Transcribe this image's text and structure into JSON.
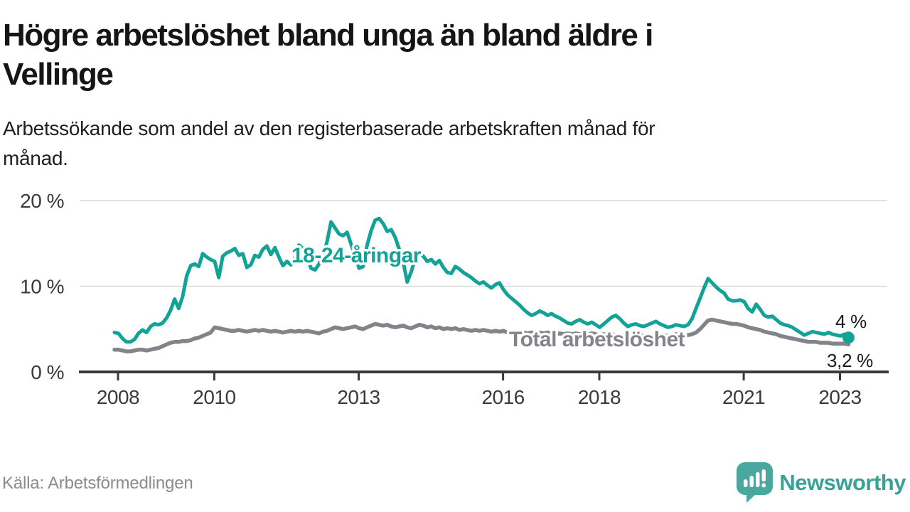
{
  "header": {
    "title": "Högre arbetslöshet bland unga än bland äldre i\nVellinge",
    "subtitle": "Arbetssökande som andel av den registerbaserade arbetskraften månad för\nmånad."
  },
  "source": {
    "label": "Källa: Arbetsförmedlingen"
  },
  "branding": {
    "name": "Newsworthy",
    "logo_icon": "speech-bubble-bar-chart-icon",
    "brand_color": "#38a295"
  },
  "chart_data": {
    "type": "line",
    "title": "Högre arbetslöshet bland unga än bland äldre i Vellinge",
    "subtitle": "Arbetssökande som andel av den registerbaserade arbetskraften månad för månad.",
    "x": {
      "start": "2008-01",
      "frequency": "monthly",
      "tick_years": [
        2008,
        2010,
        2013,
        2016,
        2018,
        2021,
        2023
      ]
    },
    "y": {
      "ticks": [
        0,
        10,
        20
      ],
      "tick_labels": [
        "0 %",
        "10 %",
        "20 %"
      ],
      "ylim": [
        0,
        21
      ],
      "unit": "%"
    },
    "grid": "horizontal",
    "legend": "inline-labels",
    "series": [
      {
        "name": "18-24-åringar",
        "label_text": "18-24-åringar",
        "end_label": "4 %",
        "end_value": 4.0,
        "color": "#12a296",
        "values": [
          4.6,
          4.5,
          3.9,
          3.5,
          3.5,
          3.8,
          4.5,
          4.9,
          4.6,
          5.3,
          5.6,
          5.5,
          5.7,
          6.3,
          7.2,
          8.5,
          7.4,
          8.8,
          11.2,
          12.4,
          12.6,
          12.3,
          13.8,
          13.4,
          13.1,
          12.9,
          11.0,
          13.5,
          13.9,
          14.1,
          14.4,
          13.6,
          13.8,
          12.2,
          12.5,
          13.6,
          13.4,
          14.3,
          14.7,
          13.7,
          14.5,
          13.4,
          12.4,
          12.9,
          12.5,
          13.3,
          14.8,
          14.4,
          13.6,
          12.1,
          11.9,
          12.6,
          13.4,
          15.2,
          17.5,
          16.8,
          16.1,
          15.9,
          16.3,
          14.9,
          13.6,
          12.1,
          12.3,
          14.8,
          16.5,
          17.7,
          17.9,
          17.3,
          16.4,
          16.6,
          15.7,
          14.3,
          12.8,
          10.5,
          11.7,
          13.3,
          13.9,
          13.5,
          12.9,
          13.1,
          12.6,
          13.0,
          12.2,
          11.6,
          11.5,
          12.3,
          12.0,
          11.6,
          11.3,
          11.0,
          10.6,
          10.3,
          10.5,
          10.1,
          9.8,
          10.2,
          10.4,
          9.6,
          9.0,
          8.6,
          8.2,
          7.8,
          7.3,
          6.9,
          6.6,
          6.8,
          7.1,
          6.9,
          6.6,
          6.8,
          6.5,
          6.3,
          6.0,
          5.7,
          5.6,
          5.9,
          6.1,
          5.8,
          5.6,
          5.8,
          5.5,
          5.2,
          5.6,
          6.0,
          6.4,
          6.6,
          6.2,
          5.7,
          5.3,
          5.5,
          5.6,
          5.4,
          5.3,
          5.5,
          5.7,
          5.9,
          5.6,
          5.4,
          5.2,
          5.3,
          5.5,
          5.4,
          5.3,
          5.5,
          6.2,
          7.4,
          8.6,
          9.8,
          10.9,
          10.4,
          9.9,
          9.5,
          9.2,
          8.5,
          8.3,
          8.3,
          8.4,
          8.2,
          7.4,
          7.0,
          7.9,
          7.3,
          6.6,
          6.4,
          6.5,
          6.1,
          5.7,
          5.5,
          5.4,
          5.2,
          4.9,
          4.6,
          4.3,
          4.5,
          4.7,
          4.6,
          4.5,
          4.4,
          4.6,
          4.4,
          4.3,
          4.2,
          4.4,
          4.0
        ]
      },
      {
        "name": "Total arbetslöshet",
        "label_text": "Total arbetslöshet",
        "end_label": "3,2 %",
        "end_value": 3.2,
        "color": "#82848a",
        "values": [
          2.6,
          2.6,
          2.5,
          2.4,
          2.4,
          2.5,
          2.6,
          2.6,
          2.5,
          2.6,
          2.7,
          2.8,
          3.0,
          3.2,
          3.4,
          3.5,
          3.5,
          3.6,
          3.6,
          3.7,
          3.9,
          4.0,
          4.2,
          4.4,
          4.6,
          5.2,
          5.1,
          5.0,
          4.9,
          4.8,
          4.8,
          4.9,
          4.8,
          4.7,
          4.8,
          4.9,
          4.8,
          4.9,
          4.8,
          4.7,
          4.8,
          4.7,
          4.6,
          4.7,
          4.8,
          4.7,
          4.8,
          4.7,
          4.8,
          4.7,
          4.6,
          4.5,
          4.7,
          4.8,
          5.0,
          5.2,
          5.1,
          5.0,
          5.1,
          5.2,
          5.3,
          5.1,
          5.0,
          5.2,
          5.4,
          5.6,
          5.5,
          5.4,
          5.5,
          5.3,
          5.2,
          5.3,
          5.4,
          5.2,
          5.1,
          5.3,
          5.5,
          5.4,
          5.2,
          5.3,
          5.1,
          5.2,
          5.0,
          5.1,
          5.0,
          5.1,
          4.9,
          5.0,
          4.9,
          4.8,
          4.9,
          4.8,
          4.9,
          4.8,
          4.7,
          4.8,
          4.7,
          4.8,
          4.6,
          4.7,
          4.6,
          4.5,
          4.6,
          4.5,
          4.6,
          4.5,
          4.6,
          4.5,
          4.6,
          4.5,
          4.4,
          4.5,
          4.4,
          4.5,
          4.4,
          4.5,
          4.4,
          4.5,
          4.4,
          4.5,
          4.4,
          4.3,
          4.4,
          4.3,
          4.4,
          4.3,
          4.2,
          4.3,
          4.2,
          4.3,
          4.2,
          4.3,
          4.2,
          4.3,
          4.2,
          4.3,
          4.2,
          4.3,
          4.2,
          4.3,
          4.4,
          4.3,
          4.2,
          4.3,
          4.4,
          4.6,
          5.0,
          5.5,
          6.0,
          6.1,
          6.0,
          5.9,
          5.8,
          5.7,
          5.6,
          5.6,
          5.5,
          5.4,
          5.2,
          5.1,
          5.0,
          4.9,
          4.7,
          4.6,
          4.5,
          4.4,
          4.2,
          4.1,
          4.0,
          3.9,
          3.8,
          3.7,
          3.6,
          3.5,
          3.5,
          3.5,
          3.4,
          3.4,
          3.4,
          3.3,
          3.3,
          3.3,
          3.3,
          3.2
        ]
      }
    ]
  }
}
